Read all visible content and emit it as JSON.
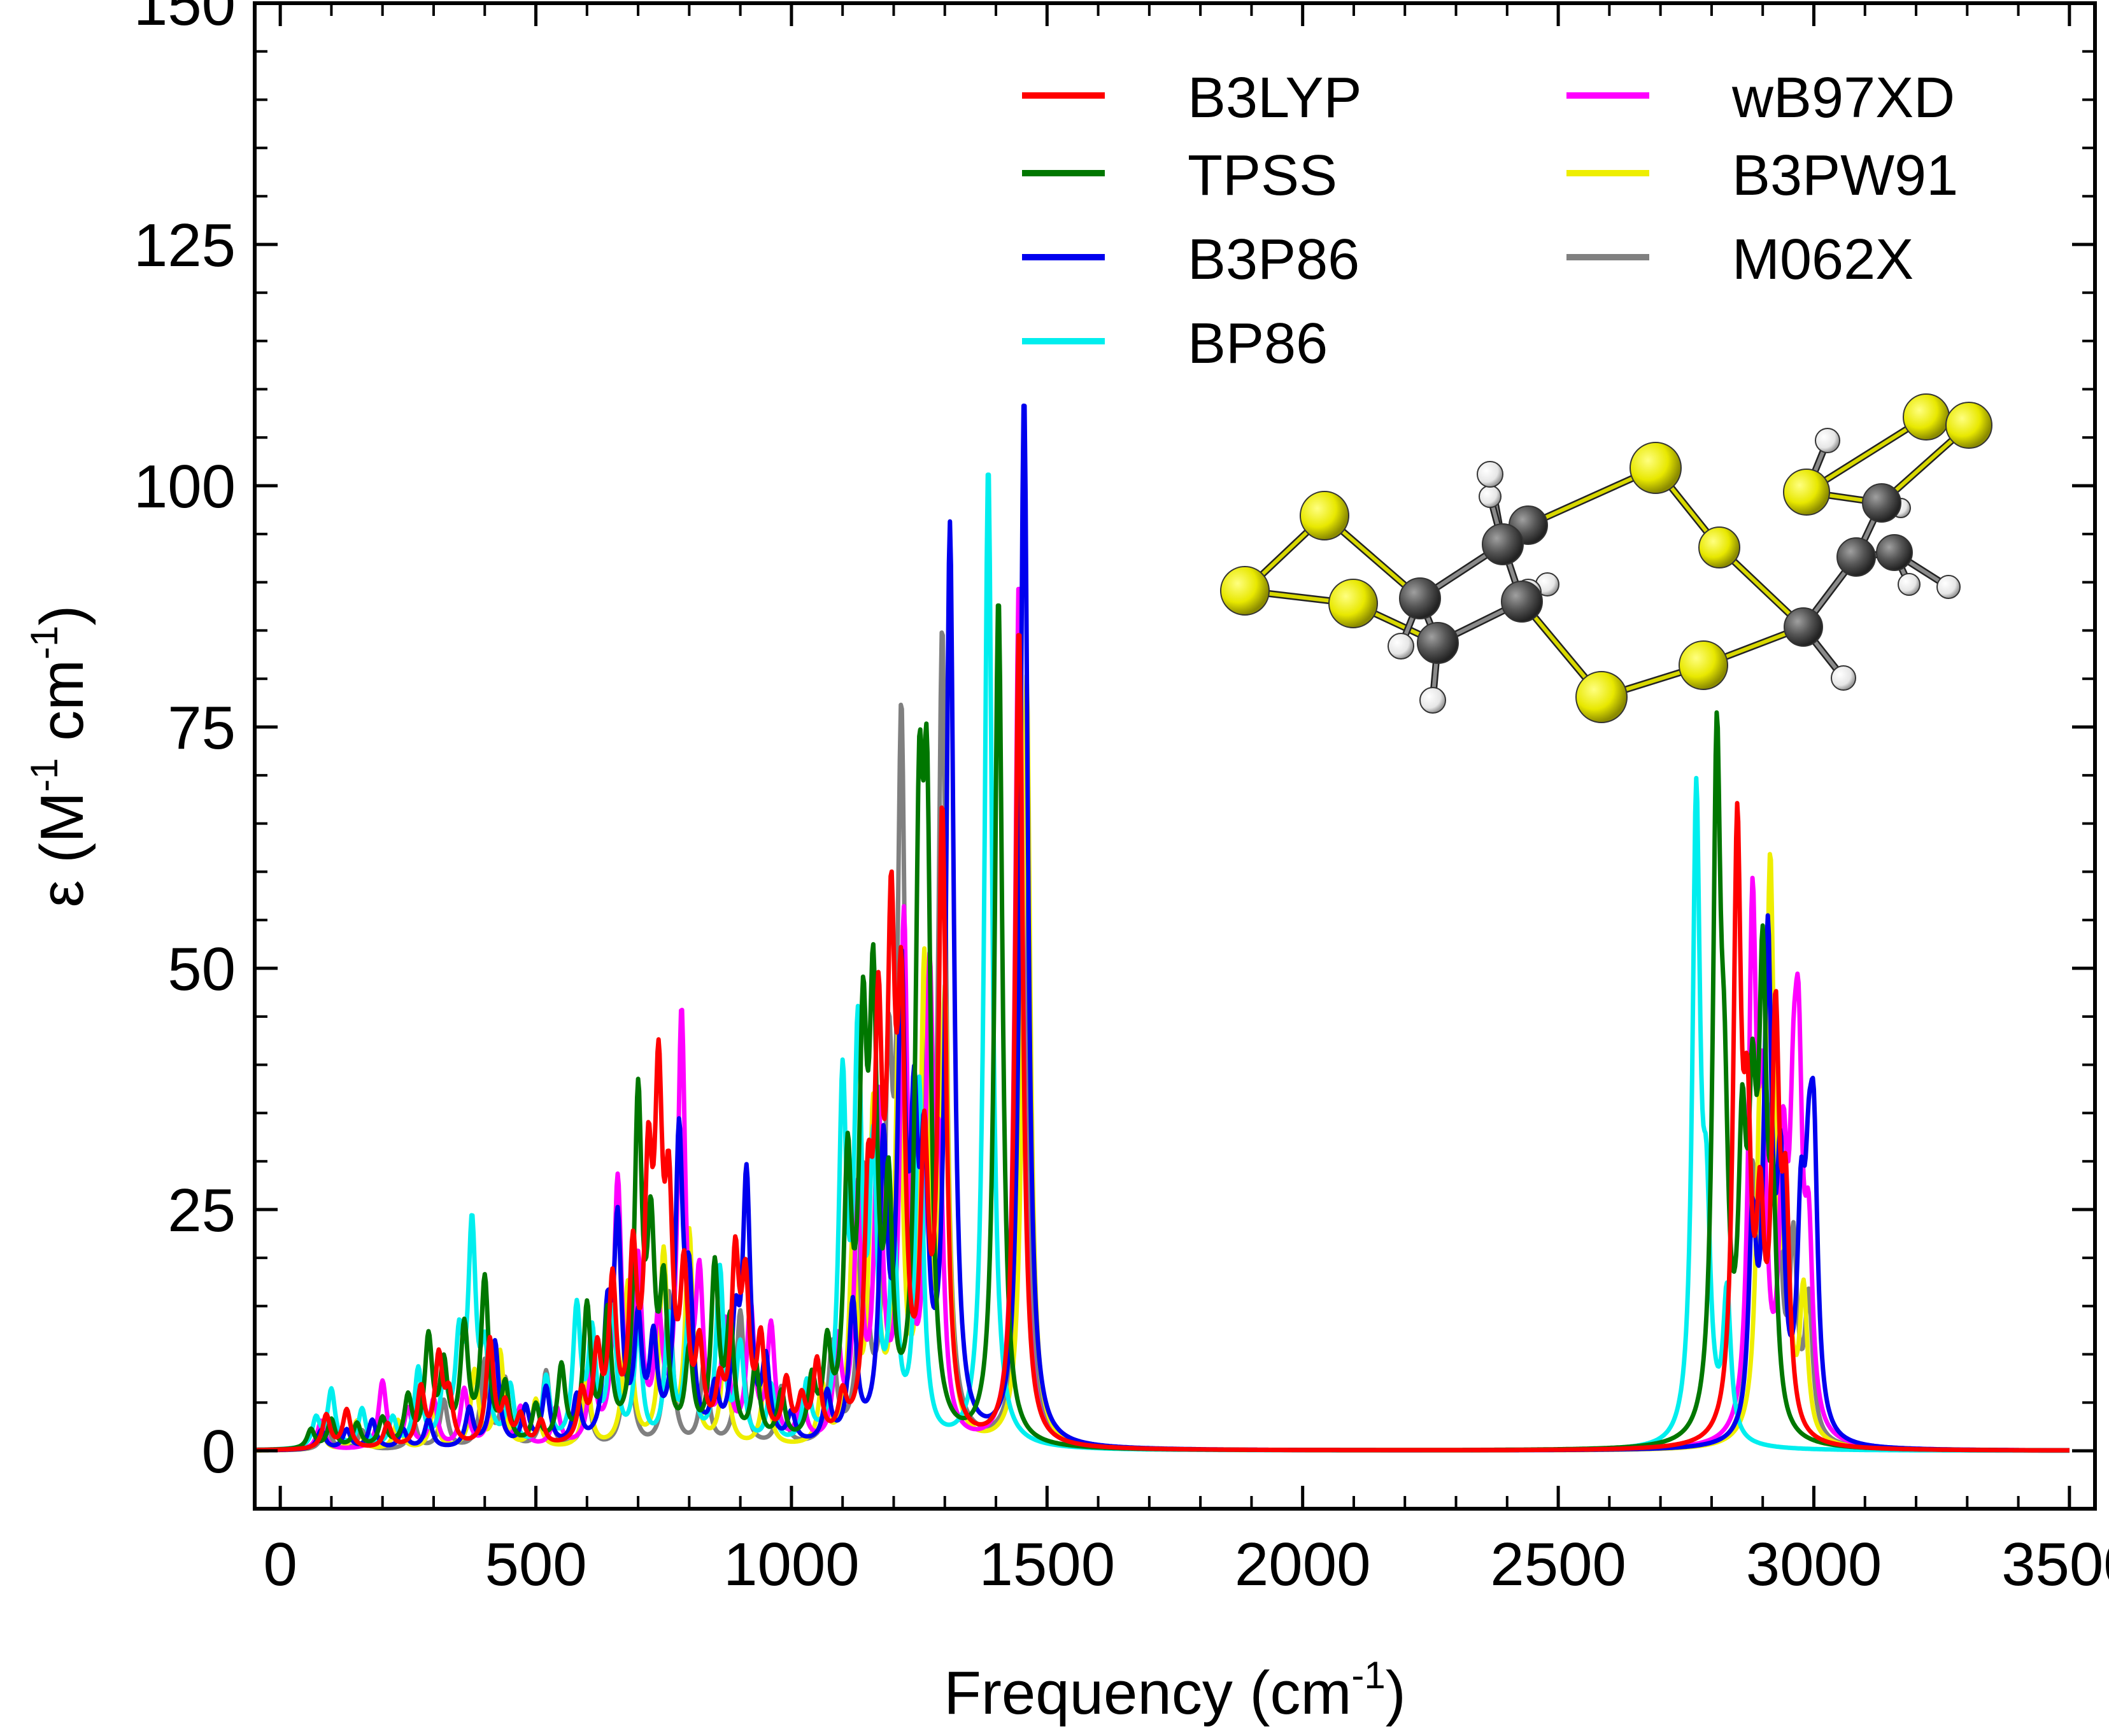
{
  "chart_data": {
    "type": "line",
    "title": "",
    "xlabel_main": "Frequency (cm",
    "xlabel_sup": "-1",
    "xlabel_end": ")",
    "ylabel_main": "ε (M",
    "ylabel_sup1": "-1",
    "ylabel_mid": " cm",
    "ylabel_sup2": "-1",
    "ylabel_end": ")",
    "xlim": [
      -50,
      3550
    ],
    "ylim": [
      -6,
      150
    ],
    "xticks": [
      0,
      500,
      1000,
      1500,
      2000,
      2500,
      3000,
      3500
    ],
    "xtick_labels": [
      "0",
      "500",
      "1000",
      "1500",
      "2000",
      "2500",
      "3000",
      "3500"
    ],
    "yticks": [
      0,
      25,
      50,
      75,
      100,
      125,
      150
    ],
    "ytick_labels": [
      "0",
      "25",
      "50",
      "75",
      "100",
      "125",
      "150"
    ],
    "grid": false,
    "legend_position": "top-right",
    "series": [
      {
        "name": "B3LYP",
        "color": "#ff0000",
        "peaks": [
          [
            90,
            3.5
          ],
          [
            130,
            4
          ],
          [
            210,
            2.5
          ],
          [
            275,
            6
          ],
          [
            310,
            9
          ],
          [
            330,
            5
          ],
          [
            410,
            11
          ],
          [
            440,
            4
          ],
          [
            470,
            3
          ],
          [
            510,
            2.5
          ],
          [
            590,
            5
          ],
          [
            620,
            9
          ],
          [
            650,
            16
          ],
          [
            690,
            18
          ],
          [
            720,
            25
          ],
          [
            740,
            33
          ],
          [
            760,
            22
          ],
          [
            790,
            16
          ],
          [
            820,
            9
          ],
          [
            860,
            5
          ],
          [
            890,
            18
          ],
          [
            910,
            15
          ],
          [
            940,
            10
          ],
          [
            990,
            6
          ],
          [
            1020,
            4
          ],
          [
            1050,
            8
          ],
          [
            1100,
            4
          ],
          [
            1150,
            22
          ],
          [
            1170,
            38
          ],
          [
            1195,
            47
          ],
          [
            1215,
            40
          ],
          [
            1260,
            28
          ],
          [
            1295,
            64
          ],
          [
            1445,
            85
          ],
          [
            2850,
            61
          ],
          [
            2870,
            27
          ],
          [
            2895,
            20
          ],
          [
            2925,
            41
          ],
          [
            2945,
            22
          ]
        ]
      },
      {
        "name": "TPSS",
        "color": "#007700",
        "peaks": [
          [
            60,
            2
          ],
          [
            100,
            3
          ],
          [
            150,
            2.5
          ],
          [
            200,
            3
          ],
          [
            250,
            5
          ],
          [
            290,
            11
          ],
          [
            320,
            8
          ],
          [
            360,
            12
          ],
          [
            400,
            17
          ],
          [
            440,
            6
          ],
          [
            500,
            4
          ],
          [
            550,
            8
          ],
          [
            600,
            14
          ],
          [
            640,
            13
          ],
          [
            700,
            35
          ],
          [
            725,
            20
          ],
          [
            750,
            15
          ],
          [
            800,
            9
          ],
          [
            850,
            18
          ],
          [
            880,
            12
          ],
          [
            930,
            8
          ],
          [
            980,
            5
          ],
          [
            1040,
            6
          ],
          [
            1070,
            9
          ],
          [
            1110,
            27
          ],
          [
            1140,
            38
          ],
          [
            1160,
            42
          ],
          [
            1190,
            23
          ],
          [
            1250,
            57
          ],
          [
            1265,
            58
          ],
          [
            1405,
            88
          ],
          [
            2810,
            68
          ],
          [
            2825,
            25
          ],
          [
            2860,
            27
          ],
          [
            2880,
            28
          ],
          [
            2900,
            44
          ],
          [
            2920,
            20
          ]
        ]
      },
      {
        "name": "B3P86",
        "color": "#0000ee",
        "peaks": [
          [
            80,
            2
          ],
          [
            130,
            2
          ],
          [
            180,
            3
          ],
          [
            240,
            2
          ],
          [
            290,
            3
          ],
          [
            370,
            4
          ],
          [
            420,
            11
          ],
          [
            480,
            4
          ],
          [
            520,
            6
          ],
          [
            580,
            5
          ],
          [
            640,
            12
          ],
          [
            660,
            22
          ],
          [
            700,
            12
          ],
          [
            730,
            10
          ],
          [
            780,
            31
          ],
          [
            800,
            14
          ],
          [
            850,
            5
          ],
          [
            890,
            11
          ],
          [
            912,
            27
          ],
          [
            950,
            8
          ],
          [
            1000,
            3
          ],
          [
            1070,
            5
          ],
          [
            1120,
            14
          ],
          [
            1180,
            29
          ],
          [
            1215,
            45
          ],
          [
            1240,
            28
          ],
          [
            1260,
            25
          ],
          [
            1310,
            94
          ],
          [
            1455,
            109
          ],
          [
            2880,
            21
          ],
          [
            2910,
            50
          ],
          [
            2935,
            25
          ],
          [
            2975,
            20
          ],
          [
            2990,
            18
          ],
          [
            3000,
            26
          ]
        ]
      },
      {
        "name": "BP86",
        "color": "#00eeee",
        "peaks": [
          [
            70,
            3
          ],
          [
            100,
            6
          ],
          [
            160,
            4
          ],
          [
            220,
            3
          ],
          [
            270,
            8
          ],
          [
            320,
            6
          ],
          [
            350,
            10
          ],
          [
            375,
            22
          ],
          [
            400,
            9
          ],
          [
            450,
            6
          ],
          [
            520,
            7
          ],
          [
            580,
            14
          ],
          [
            610,
            11
          ],
          [
            650,
            14
          ],
          [
            700,
            12
          ],
          [
            760,
            13
          ],
          [
            800,
            14
          ],
          [
            860,
            18
          ],
          [
            900,
            10
          ],
          [
            960,
            6
          ],
          [
            1030,
            6
          ],
          [
            1100,
            36
          ],
          [
            1130,
            40
          ],
          [
            1160,
            28
          ],
          [
            1200,
            20
          ],
          [
            1250,
            37
          ],
          [
            1385,
            102
          ],
          [
            2770,
            66
          ],
          [
            2790,
            20
          ],
          [
            2830,
            15
          ]
        ]
      },
      {
        "name": "wB97XD",
        "color": "#ff00ff",
        "peaks": [
          [
            80,
            3
          ],
          [
            200,
            7
          ],
          [
            250,
            4
          ],
          [
            300,
            5
          ],
          [
            360,
            6
          ],
          [
            420,
            10
          ],
          [
            470,
            4
          ],
          [
            540,
            4
          ],
          [
            610,
            8
          ],
          [
            660,
            27
          ],
          [
            700,
            18
          ],
          [
            740,
            12
          ],
          [
            785,
            44
          ],
          [
            820,
            16
          ],
          [
            870,
            12
          ],
          [
            920,
            14
          ],
          [
            960,
            12
          ],
          [
            1020,
            5
          ],
          [
            1090,
            10
          ],
          [
            1130,
            25
          ],
          [
            1170,
            34
          ],
          [
            1220,
            53
          ],
          [
            1270,
            45
          ],
          [
            1290,
            25
          ],
          [
            1445,
            90
          ],
          [
            2880,
            53
          ],
          [
            2900,
            30
          ],
          [
            2940,
            26
          ],
          [
            2960,
            23
          ],
          [
            2970,
            32
          ],
          [
            2990,
            18
          ]
        ]
      },
      {
        "name": "B3PW91",
        "color": "#eeee00",
        "peaks": [
          [
            80,
            2
          ],
          [
            150,
            3
          ],
          [
            230,
            3
          ],
          [
            300,
            4
          ],
          [
            380,
            8
          ],
          [
            430,
            10
          ],
          [
            500,
            5
          ],
          [
            600,
            7
          ],
          [
            680,
            17
          ],
          [
            750,
            20
          ],
          [
            800,
            22
          ],
          [
            870,
            10
          ],
          [
            950,
            8
          ],
          [
            1060,
            6
          ],
          [
            1120,
            20
          ],
          [
            1160,
            34
          ],
          [
            1210,
            42
          ],
          [
            1260,
            48
          ],
          [
            1300,
            45
          ],
          [
            1460,
            80
          ],
          [
            2895,
            30
          ],
          [
            2915,
            55
          ],
          [
            2945,
            22
          ],
          [
            2980,
            15
          ]
        ]
      },
      {
        "name": "M062X",
        "color": "#808080",
        "peaks": [
          [
            90,
            3
          ],
          [
            160,
            2
          ],
          [
            260,
            3
          ],
          [
            320,
            5
          ],
          [
            400,
            9
          ],
          [
            440,
            7
          ],
          [
            520,
            8
          ],
          [
            600,
            6
          ],
          [
            680,
            14
          ],
          [
            760,
            16
          ],
          [
            830,
            9
          ],
          [
            900,
            14
          ],
          [
            980,
            6
          ],
          [
            1080,
            10
          ],
          [
            1140,
            27
          ],
          [
            1190,
            35
          ],
          [
            1215,
            71
          ],
          [
            1260,
            34
          ],
          [
            1295,
            82
          ],
          [
            1455,
            76
          ],
          [
            2880,
            25
          ],
          [
            2905,
            28
          ],
          [
            2925,
            40
          ],
          [
            2960,
            19
          ],
          [
            2990,
            14
          ]
        ]
      }
    ]
  },
  "molecule": {
    "atom_colors": {
      "S": "#e8e800",
      "C": "#5a5a5a",
      "H": "#f2f2f2"
    }
  }
}
